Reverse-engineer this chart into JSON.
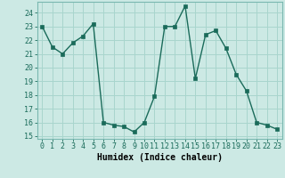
{
  "x": [
    0,
    1,
    2,
    3,
    4,
    5,
    6,
    7,
    8,
    9,
    10,
    11,
    12,
    13,
    14,
    15,
    16,
    17,
    18,
    19,
    20,
    21,
    22,
    23
  ],
  "y": [
    23,
    21.5,
    21.0,
    21.8,
    22.3,
    23.2,
    16.0,
    15.8,
    15.7,
    15.3,
    16.0,
    17.9,
    23.0,
    23.0,
    24.5,
    19.2,
    22.4,
    22.7,
    21.4,
    19.5,
    18.3,
    16.0,
    15.8,
    15.5
  ],
  "line_color": "#1a6b5a",
  "marker": "s",
  "markersize": 2.5,
  "linewidth": 1.0,
  "xlabel": "Humidex (Indice chaleur)",
  "xlim": [
    -0.5,
    23.5
  ],
  "ylim": [
    14.8,
    24.8
  ],
  "yticks": [
    15,
    16,
    17,
    18,
    19,
    20,
    21,
    22,
    23,
    24
  ],
  "xticks": [
    0,
    1,
    2,
    3,
    4,
    5,
    6,
    7,
    8,
    9,
    10,
    11,
    12,
    13,
    14,
    15,
    16,
    17,
    18,
    19,
    20,
    21,
    22,
    23
  ],
  "xtick_labels": [
    "0",
    "1",
    "2",
    "3",
    "4",
    "5",
    "6",
    "7",
    "8",
    "9",
    "10",
    "11",
    "12",
    "13",
    "14",
    "15",
    "16",
    "17",
    "18",
    "19",
    "20",
    "21",
    "22",
    "23"
  ],
  "bg_color": "#cce9e4",
  "grid_color": "#a8d5cd",
  "xlabel_fontsize": 7,
  "tick_fontsize": 6
}
